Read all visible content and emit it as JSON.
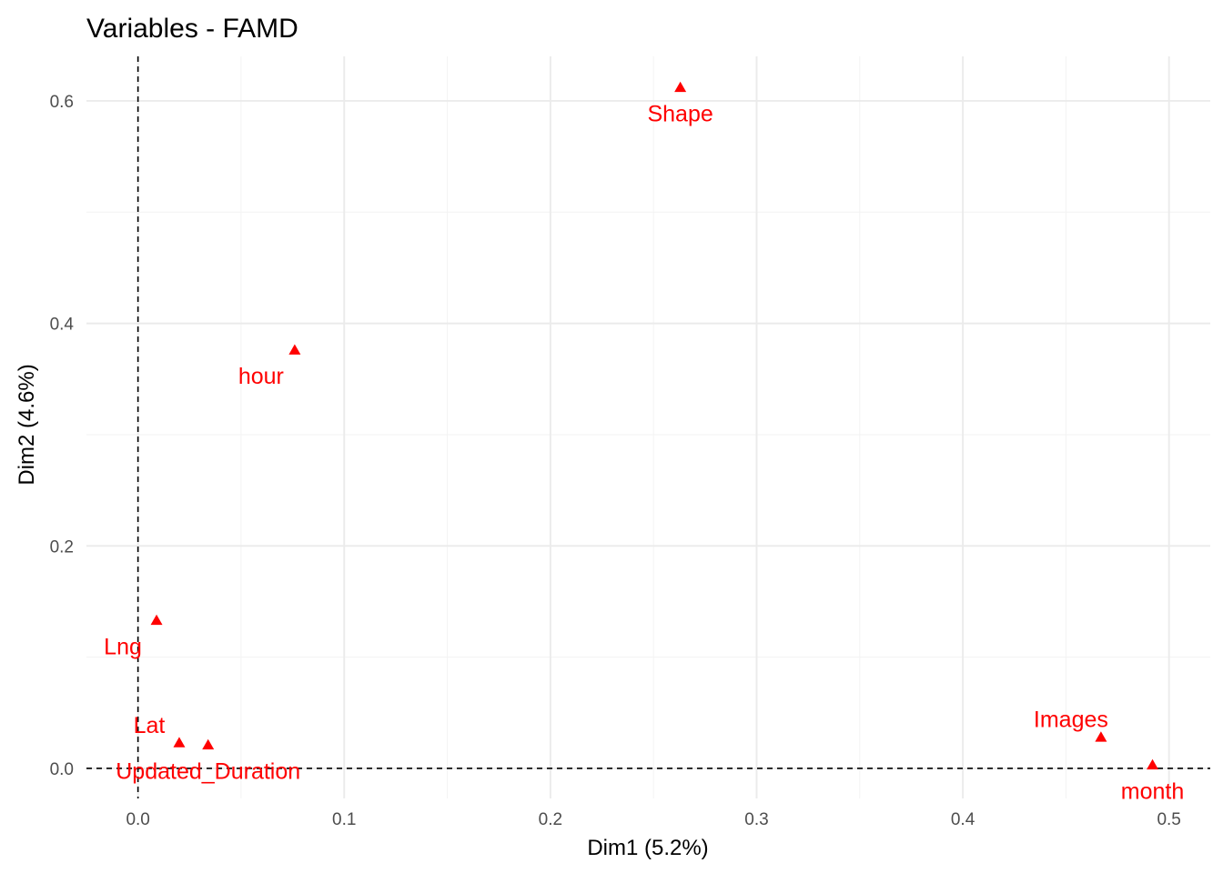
{
  "chart_data": {
    "type": "scatter",
    "title": "Variables - FAMD",
    "xlabel": "Dim1 (5.2%)",
    "ylabel": "Dim2 (4.6%)",
    "xlim": [
      -0.025,
      0.52
    ],
    "ylim": [
      -0.027,
      0.64
    ],
    "x_ticks": [
      0.0,
      0.1,
      0.2,
      0.3,
      0.4,
      0.5
    ],
    "x_tick_labels": [
      "0.0",
      "0.1",
      "0.2",
      "0.3",
      "0.4",
      "0.5"
    ],
    "y_ticks": [
      0.0,
      0.2,
      0.4,
      0.6
    ],
    "y_tick_labels": [
      "0.0",
      "0.2",
      "0.4",
      "0.6"
    ],
    "grid": true,
    "reference_lines": {
      "x": 0,
      "y": 0
    },
    "marker": "triangle",
    "color": "#ff0000",
    "points": [
      {
        "label": "Shape",
        "x": 0.263,
        "y": 0.612,
        "label_pos": "below"
      },
      {
        "label": "hour",
        "x": 0.076,
        "y": 0.376,
        "label_pos": "below-left"
      },
      {
        "label": "Lng",
        "x": 0.009,
        "y": 0.133,
        "label_pos": "below-left"
      },
      {
        "label": "Lat",
        "x": 0.02,
        "y": 0.023,
        "label_pos": "above-left"
      },
      {
        "label": "Updated_Duration",
        "x": 0.034,
        "y": 0.021,
        "label_pos": "below"
      },
      {
        "label": "Images",
        "x": 0.467,
        "y": 0.028,
        "label_pos": "above-left"
      },
      {
        "label": "month",
        "x": 0.492,
        "y": 0.003,
        "label_pos": "below"
      }
    ]
  }
}
